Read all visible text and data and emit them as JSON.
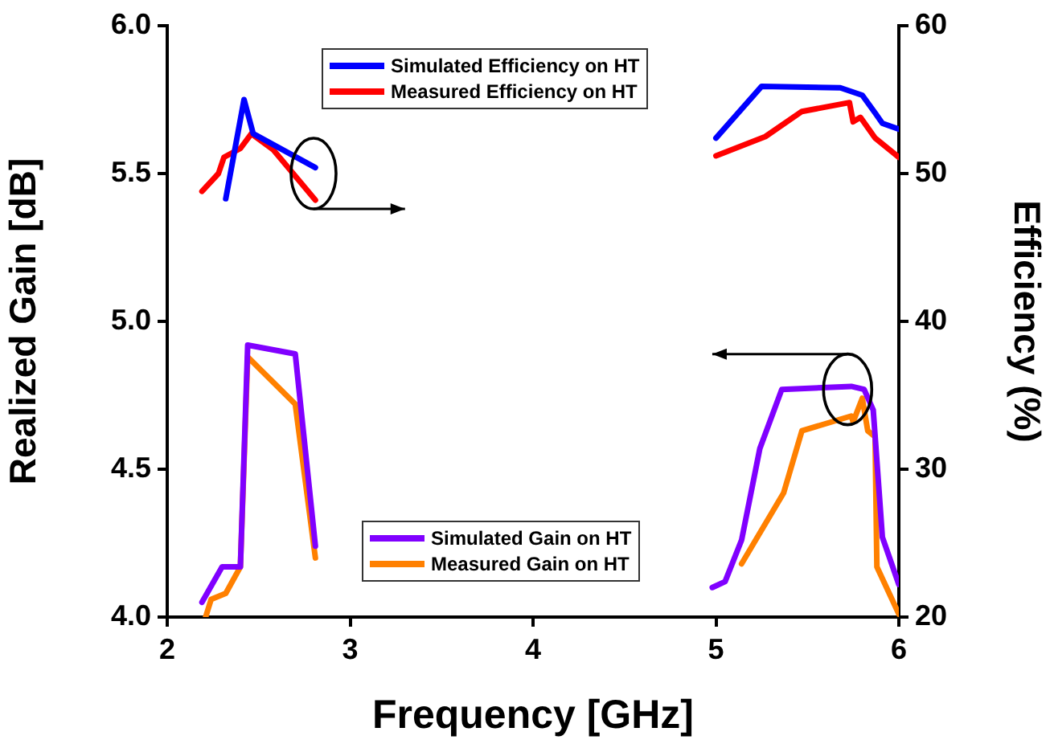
{
  "chart_data": {
    "type": "line",
    "xlabel": "Frequency [GHz]",
    "ylabel": "Realized Gain [dB]",
    "y2label": "Efficiency (%)",
    "xlim": [
      2,
      6
    ],
    "xticks": [
      2,
      3,
      4,
      5,
      6
    ],
    "ylim": [
      4,
      6
    ],
    "yticks": [
      {
        "value": 4,
        "label": "4.0"
      },
      {
        "value": 4.5,
        "label": "4.5"
      },
      {
        "value": 5,
        "label": "5.0"
      },
      {
        "value": 5.5,
        "label": "5.5"
      },
      {
        "value": 6,
        "label": "6.0"
      }
    ],
    "y2lim": [
      20,
      60
    ],
    "y2ticks": [
      20,
      30,
      40,
      50,
      60
    ],
    "grid": false,
    "legend": "top",
    "marker": "none",
    "line_style": "solid",
    "series": [
      {
        "name": "Simulated Efficiency on HT",
        "color": "#0000ff",
        "axis": "y2",
        "x": [
          2.32,
          2.42,
          2.47,
          2.81,
          4,
          5.0,
          5.25,
          5.68,
          5.8,
          5.87,
          5.91,
          6.0
        ],
        "values": [
          48.3,
          55.0,
          52.7,
          50.4,
          null,
          52.4,
          55.9,
          55.8,
          55.3,
          54.1,
          53.4,
          53.0
        ]
      },
      {
        "name": "Measured Efficiency on HT",
        "color": "#ff0000",
        "axis": "y2",
        "x": [
          2.19,
          2.28,
          2.31,
          2.4,
          2.46,
          2.58,
          2.81,
          4,
          5.0,
          5.27,
          5.47,
          5.73,
          5.75,
          5.79,
          5.87,
          6.0
        ],
        "values": [
          48.8,
          50.0,
          51.1,
          51.7,
          52.7,
          51.6,
          48.2,
          null,
          51.2,
          52.5,
          54.2,
          54.8,
          53.5,
          53.8,
          52.4,
          51.1
        ]
      },
      {
        "name": "Simulated Gain on HT",
        "color": "#8000ff",
        "x": [
          2.19,
          2.3,
          2.4,
          2.44,
          2.7,
          2.81,
          4,
          4.98,
          5.05,
          5.14,
          5.24,
          5.36,
          5.74,
          5.81,
          5.86,
          5.91,
          6.0
        ],
        "values": [
          4.05,
          4.17,
          4.17,
          4.92,
          4.89,
          4.24,
          null,
          4.1,
          4.12,
          4.26,
          4.57,
          4.77,
          4.78,
          4.77,
          4.7,
          4.27,
          4.11
        ]
      },
      {
        "name": "Measured Gain on HT",
        "color": "#ff8000",
        "x": [
          2.21,
          2.24,
          2.32,
          2.4,
          2.44,
          2.7,
          2.81,
          4,
          5.14,
          5.37,
          5.47,
          5.74,
          5.75,
          5.8,
          5.83,
          5.87,
          5.88,
          6.0
        ],
        "values": [
          4.0,
          4.06,
          4.08,
          4.17,
          4.88,
          4.72,
          4.2,
          null,
          4.18,
          4.42,
          4.63,
          4.68,
          4.66,
          4.74,
          4.63,
          4.61,
          4.17,
          4.01
        ]
      }
    ]
  }
}
